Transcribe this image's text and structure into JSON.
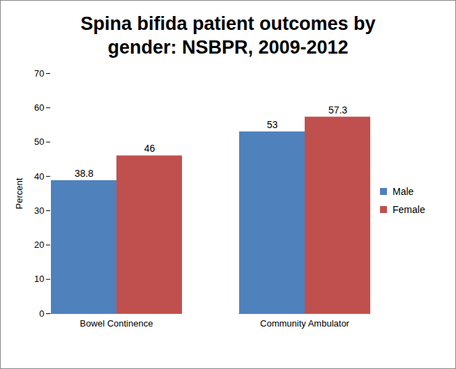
{
  "chart_data": {
    "type": "bar",
    "title": "Spina bifida patient outcomes by gender: NSBPR, 2009-2012",
    "categories": [
      "Bowel Continence",
      "Community Ambulator"
    ],
    "series": [
      {
        "name": "Male",
        "color": "#4f81bd",
        "values": [
          38.8,
          53
        ]
      },
      {
        "name": "Female",
        "color": "#c0504d",
        "values": [
          46,
          57.3
        ]
      }
    ],
    "y_label": "Percent",
    "ylim": [
      0,
      70
    ],
    "yticks": [
      0,
      10,
      20,
      30,
      40,
      50,
      60,
      70
    ],
    "grid": false,
    "legend": "right",
    "data_labels": true
  }
}
